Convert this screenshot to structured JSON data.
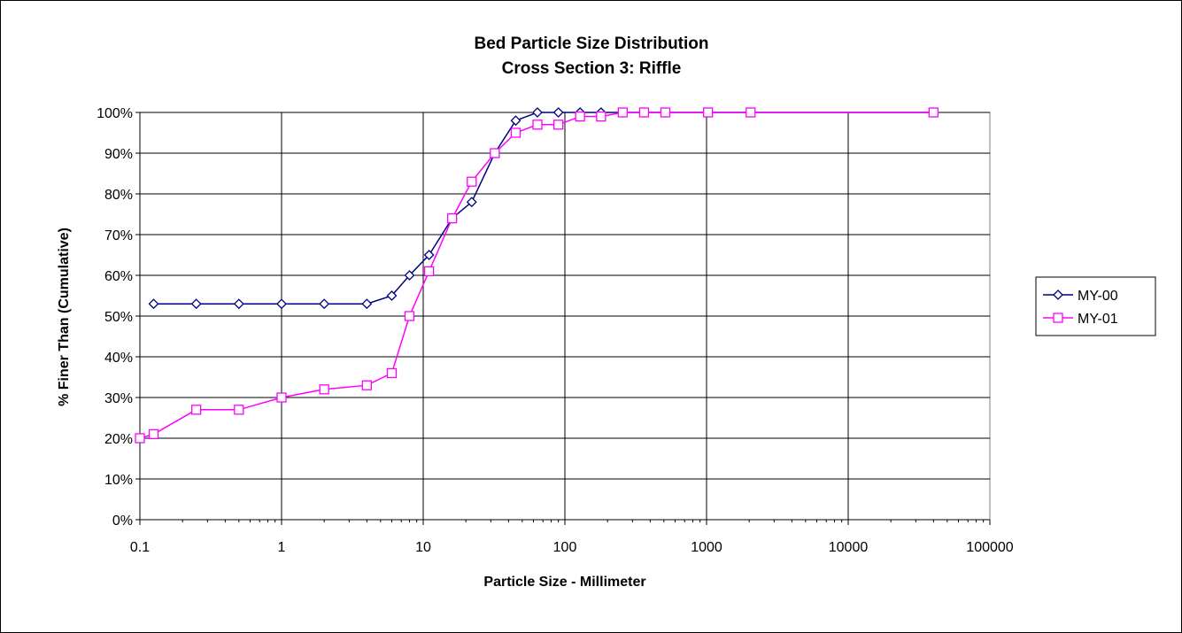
{
  "chart_data": {
    "type": "line",
    "title": "Bed Particle Size Distribution",
    "subtitle": "Cross Section 3: Riffle",
    "xlabel": "Particle Size - Millimeter",
    "ylabel": "% Finer Than (Cumulative)",
    "xscale": "log",
    "xlim": [
      0.1,
      100000
    ],
    "ylim": [
      0,
      100
    ],
    "x_ticks": [
      "0.1",
      "1",
      "10",
      "100",
      "1000",
      "10000",
      "100000"
    ],
    "y_ticks": [
      "0%",
      "10%",
      "20%",
      "30%",
      "40%",
      "50%",
      "60%",
      "70%",
      "80%",
      "90%",
      "100%"
    ],
    "grid": true,
    "legend_position": "right",
    "series": [
      {
        "name": "MY-00",
        "color": "#000080",
        "marker": "diamond",
        "points": [
          [
            0.125,
            53
          ],
          [
            0.25,
            53
          ],
          [
            0.5,
            53
          ],
          [
            1,
            53
          ],
          [
            2,
            53
          ],
          [
            4,
            53
          ],
          [
            6,
            55
          ],
          [
            8,
            60
          ],
          [
            11,
            65
          ],
          [
            16,
            74
          ],
          [
            22,
            78
          ],
          [
            32,
            90
          ],
          [
            45,
            98
          ],
          [
            64,
            100
          ],
          [
            90,
            100
          ],
          [
            128,
            100
          ],
          [
            180,
            100
          ],
          [
            256,
            100
          ],
          [
            362,
            100
          ],
          [
            512,
            100
          ],
          [
            1024,
            100
          ],
          [
            2048,
            100
          ],
          [
            40000,
            100
          ]
        ]
      },
      {
        "name": "MY-01",
        "color": "#ff00ff",
        "marker": "square",
        "points": [
          [
            0.1,
            20
          ],
          [
            0.125,
            21
          ],
          [
            0.25,
            27
          ],
          [
            0.5,
            27
          ],
          [
            1,
            30
          ],
          [
            2,
            32
          ],
          [
            4,
            33
          ],
          [
            6,
            36
          ],
          [
            8,
            50
          ],
          [
            11,
            61
          ],
          [
            16,
            74
          ],
          [
            22,
            83
          ],
          [
            32,
            90
          ],
          [
            45,
            95
          ],
          [
            64,
            97
          ],
          [
            90,
            97
          ],
          [
            128,
            99
          ],
          [
            180,
            99
          ],
          [
            256,
            100
          ],
          [
            362,
            100
          ],
          [
            512,
            100
          ],
          [
            1024,
            100
          ],
          [
            2048,
            100
          ],
          [
            40000,
            100
          ]
        ]
      }
    ]
  }
}
